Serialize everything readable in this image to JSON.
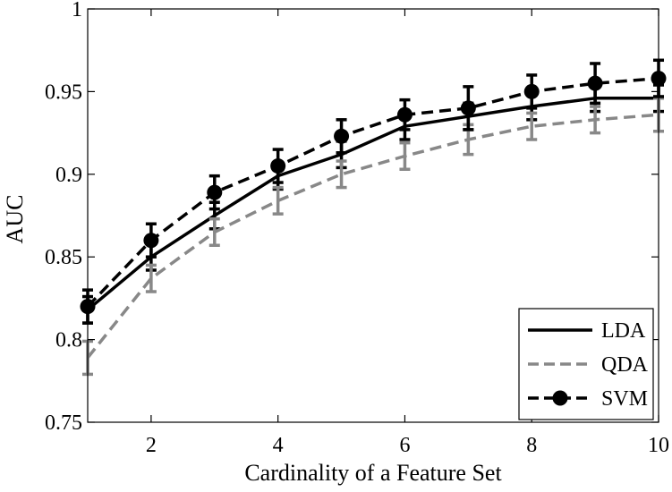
{
  "chart_data": {
    "type": "line",
    "title": "",
    "xlabel": "Cardinality of a Feature Set",
    "ylabel": "AUC",
    "xlim": [
      1,
      10
    ],
    "ylim": [
      0.75,
      1
    ],
    "xticks": [
      2,
      4,
      6,
      8,
      10
    ],
    "xtick_labels": [
      "2",
      "4",
      "6",
      "8",
      "10"
    ],
    "yticks": [
      0.75,
      0.8,
      0.85,
      0.9,
      0.95,
      1
    ],
    "ytick_labels": [
      "0.75",
      "0.8",
      "0.85",
      "0.9",
      "0.95",
      "1"
    ],
    "grid": false,
    "legend_position": "bottom-right",
    "x": [
      1,
      2,
      3,
      4,
      5,
      6,
      7,
      8,
      9,
      10
    ],
    "series": [
      {
        "name": "LDA",
        "color": "#000000",
        "line_style": "solid",
        "marker": "none",
        "values": [
          0.818,
          0.85,
          0.875,
          0.899,
          0.912,
          0.929,
          0.935,
          0.941,
          0.946,
          0.946
        ],
        "error": [
          0.008,
          0.008,
          0.008,
          0.008,
          0.008,
          0.008,
          0.008,
          0.008,
          0.008,
          0.008
        ]
      },
      {
        "name": "QDA",
        "color": "#888888",
        "line_style": "dashed",
        "marker": "none",
        "values": [
          0.789,
          0.837,
          0.865,
          0.884,
          0.9,
          0.911,
          0.921,
          0.929,
          0.933,
          0.936
        ],
        "error": [
          0.01,
          0.008,
          0.008,
          0.008,
          0.008,
          0.008,
          0.009,
          0.008,
          0.008,
          0.01
        ]
      },
      {
        "name": "SVM",
        "color": "#000000",
        "line_style": "dashed",
        "marker": "circle",
        "values": [
          0.82,
          0.86,
          0.889,
          0.905,
          0.923,
          0.936,
          0.94,
          0.95,
          0.955,
          0.958
        ],
        "error": [
          0.01,
          0.01,
          0.01,
          0.01,
          0.01,
          0.009,
          0.013,
          0.01,
          0.012,
          0.011
        ]
      }
    ]
  }
}
